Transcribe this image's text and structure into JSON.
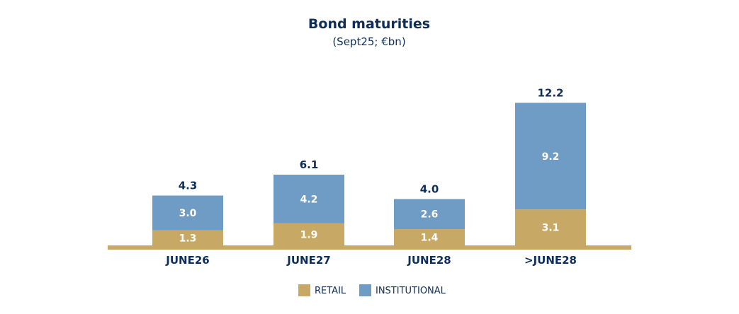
{
  "chart_data": {
    "type": "bar",
    "stacked": true,
    "title": "Bond maturities",
    "subtitle": "(Sept25; €bn)",
    "categories": [
      "JUNE26",
      "JUNE27",
      "JUNE28",
      ">JUNE28"
    ],
    "series": [
      {
        "name": "RETAIL",
        "values": [
          1.3,
          1.9,
          1.4,
          3.1
        ],
        "color": "#c8a865"
      },
      {
        "name": "INSTITUTIONAL",
        "values": [
          3.0,
          4.2,
          2.6,
          9.2
        ],
        "color": "#6f9cc5"
      }
    ],
    "totals": [
      "4.3",
      "6.1",
      "4.0",
      "12.2"
    ],
    "value_labels": [
      [
        "1.3",
        "1.9",
        "1.4",
        "3.1"
      ],
      [
        "3.0",
        "4.2",
        "2.6",
        "9.2"
      ]
    ],
    "ylim": [
      0,
      12.2
    ],
    "grid": false,
    "legend": "bottom-center",
    "baseline_color": "#c8a865",
    "text_color": "#0d2d5a",
    "label_color": "#ffffff"
  }
}
